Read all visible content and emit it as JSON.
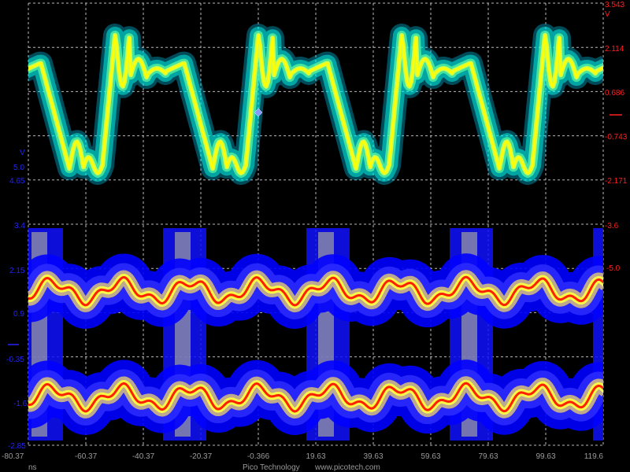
{
  "footer": {
    "x_unit": "ns",
    "brand": "Pico Technology",
    "url": "www.picotech.com"
  },
  "time_axis": {
    "ticks": [
      "-80.37",
      "-60.37",
      "-40.37",
      "-20.37",
      "-0.366",
      "19.63",
      "39.63",
      "59.63",
      "79.63",
      "99.63",
      "119.6"
    ]
  },
  "left_axis": {
    "unit": "V",
    "upper_labels": [
      "5.0",
      "4.65"
    ],
    "ticks": [
      "3.4",
      "2.15",
      "0.9",
      "-0.35",
      "-1.6",
      "-2.85"
    ],
    "color": "#2222ff"
  },
  "right_axis": {
    "unit": "V",
    "ticks": [
      "3.543",
      "2.114",
      "0.686",
      "-0.743",
      "-2.171",
      "-3.6"
    ],
    "extra_label": "-5.0",
    "color": "#ff2020"
  },
  "colors": {
    "background": "#000000",
    "grid": "#b8b8b8",
    "channel_a_outer": "#00e0ff",
    "channel_a_inner": "#ffff00",
    "channel_b_outer": "#0000ff",
    "channel_b_inner": "#ff2000",
    "trigger_marker": "#8899ff"
  }
}
